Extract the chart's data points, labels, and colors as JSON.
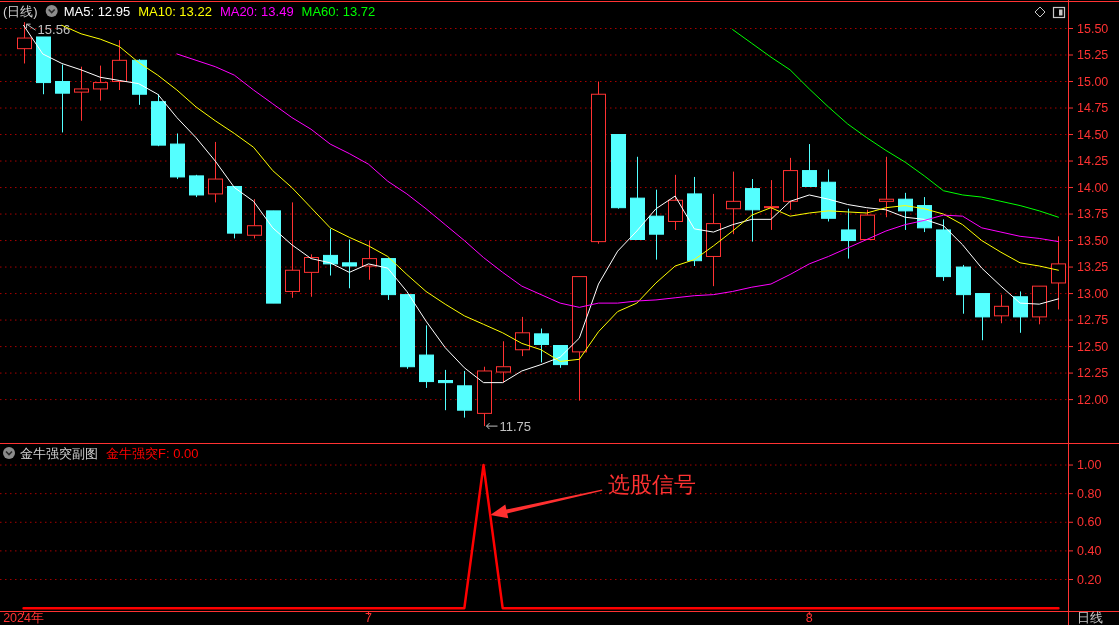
{
  "chart_data": [
    {
      "type": "candlestick",
      "title": "(日线)",
      "categories": [
        null,
        null,
        null,
        null,
        null,
        null,
        null,
        null,
        null,
        null,
        null,
        null,
        null,
        null,
        null,
        null,
        null,
        null,
        null,
        null,
        null,
        null,
        null,
        null,
        null,
        null,
        null,
        null,
        null,
        null,
        null,
        null,
        null,
        null,
        null,
        null,
        null,
        null,
        null,
        null,
        null,
        null,
        null,
        null,
        null,
        null,
        null,
        null,
        null,
        null,
        null,
        null,
        null,
        null,
        null
      ],
      "ohlc": [
        [
          15.31,
          15.56,
          15.17,
          15.41
        ],
        [
          15.42,
          15.42,
          14.88,
          14.99
        ],
        [
          15.0,
          15.16,
          14.52,
          14.89
        ],
        [
          14.9,
          15.14,
          14.63,
          14.93
        ],
        [
          14.93,
          15.15,
          14.82,
          14.99
        ],
        [
          15.0,
          15.39,
          14.92,
          15.2
        ],
        [
          15.2,
          15.21,
          14.78,
          14.88
        ],
        [
          14.81,
          14.88,
          14.39,
          14.4
        ],
        [
          14.41,
          14.51,
          14.08,
          14.1
        ],
        [
          14.11,
          14.12,
          13.91,
          13.93
        ],
        [
          13.94,
          14.43,
          13.86,
          14.08
        ],
        [
          14.01,
          14.01,
          13.52,
          13.57
        ],
        [
          13.55,
          13.89,
          13.52,
          13.64
        ],
        [
          13.78,
          13.78,
          12.91,
          12.91
        ],
        [
          13.02,
          13.86,
          12.96,
          13.22
        ],
        [
          13.2,
          13.37,
          12.97,
          13.34
        ],
        [
          13.36,
          13.61,
          13.17,
          13.28
        ],
        [
          13.29,
          13.51,
          13.05,
          13.26
        ],
        [
          13.26,
          13.5,
          13.13,
          13.33
        ],
        [
          13.33,
          13.33,
          12.94,
          12.99
        ],
        [
          12.99,
          12.99,
          12.29,
          12.31
        ],
        [
          12.42,
          12.7,
          12.11,
          12.17
        ],
        [
          12.18,
          12.28,
          11.9,
          12.16
        ],
        [
          12.13,
          12.27,
          11.83,
          11.9
        ],
        [
          11.87,
          12.31,
          11.75,
          12.27
        ],
        [
          12.26,
          12.55,
          12.16,
          12.31
        ],
        [
          12.47,
          12.78,
          12.41,
          12.63
        ],
        [
          12.62,
          12.67,
          12.35,
          12.52
        ],
        [
          12.51,
          12.51,
          12.3,
          12.33
        ],
        [
          12.45,
          13.16,
          11.99,
          13.16
        ],
        [
          13.49,
          15.0,
          13.47,
          14.88
        ],
        [
          14.5,
          14.5,
          13.8,
          13.81
        ],
        [
          13.9,
          14.29,
          13.51,
          13.51
        ],
        [
          13.73,
          13.98,
          13.32,
          13.56
        ],
        [
          13.68,
          14.12,
          13.6,
          13.88
        ],
        [
          13.94,
          14.1,
          13.26,
          13.31
        ],
        [
          13.35,
          13.94,
          13.07,
          13.66
        ],
        [
          13.8,
          14.15,
          13.56,
          13.87
        ],
        [
          13.99,
          14.08,
          13.49,
          13.79
        ],
        [
          13.81,
          14.07,
          13.6,
          13.82
        ],
        [
          13.87,
          14.28,
          13.79,
          14.16
        ],
        [
          14.16,
          14.41,
          14.01,
          14.01
        ],
        [
          14.05,
          14.17,
          13.68,
          13.71
        ],
        [
          13.6,
          13.8,
          13.33,
          13.5
        ],
        [
          13.51,
          13.79,
          13.51,
          13.74
        ],
        [
          13.87,
          14.29,
          13.72,
          13.89
        ],
        [
          13.89,
          13.95,
          13.6,
          13.78
        ],
        [
          13.83,
          13.91,
          13.58,
          13.62
        ],
        [
          13.6,
          13.7,
          13.12,
          13.16
        ],
        [
          13.25,
          13.27,
          12.81,
          12.99
        ],
        [
          13.0,
          13.0,
          12.56,
          12.78
        ],
        [
          12.79,
          12.99,
          12.72,
          12.88
        ],
        [
          12.97,
          13.02,
          12.63,
          12.78
        ],
        [
          12.78,
          13.07,
          12.71,
          13.07
        ],
        [
          13.1,
          13.54,
          12.85,
          13.28
        ]
      ],
      "colors": [
        "#ff3232",
        "#54ffff",
        "#54ffff",
        "#ff3232",
        "#ff3232",
        "#ff3232",
        "#54ffff",
        "#54ffff",
        "#54ffff",
        "#54ffff",
        "#ff3232",
        "#54ffff",
        "#ff3232",
        "#54ffff",
        "#ff3232",
        "#ff3232",
        "#54ffff",
        "#54ffff",
        "#ff3232",
        "#54ffff",
        "#54ffff",
        "#54ffff",
        "#54ffff",
        "#54ffff",
        "#ff3232",
        "#ff3232",
        "#ff3232",
        "#54ffff",
        "#54ffff",
        "#ff3232",
        "#ff3232",
        "#54ffff",
        "#54ffff",
        "#54ffff",
        "#ff3232",
        "#54ffff",
        "#ff3232",
        "#ff3232",
        "#54ffff",
        "#ff3232",
        "#ff3232",
        "#54ffff",
        "#54ffff",
        "#54ffff",
        "#ff3232",
        "#ff3232",
        "#54ffff",
        "#54ffff",
        "#54ffff",
        "#54ffff",
        "#54ffff",
        "#ff3232",
        "#54ffff",
        "#ff3232",
        "#ff3232"
      ],
      "series": [
        {
          "name": "MA5: 12.95",
          "type": "line",
          "color": "#ffffff",
          "values": [
            15.53,
            15.26,
            15.17,
            15.11,
            15.04,
            15.01,
            14.98,
            14.88,
            14.66,
            14.47,
            14.25,
            14.0,
            13.87,
            13.62,
            13.46,
            13.33,
            13.29,
            13.2,
            13.28,
            13.24,
            13.02,
            12.74,
            12.49,
            12.3,
            12.16,
            12.16,
            12.27,
            12.33,
            12.4,
            12.58,
            13.09,
            13.4,
            13.59,
            13.8,
            13.92,
            13.61,
            13.58,
            13.65,
            13.7,
            13.7,
            13.87,
            13.93,
            13.89,
            13.84,
            13.81,
            13.79,
            13.72,
            13.7,
            13.64,
            13.46,
            13.24,
            13.07,
            12.91,
            12.9,
            12.95
          ]
        },
        {
          "name": "MA10: 13.22",
          "type": "line",
          "color": "#ffff00",
          "values": [
            null,
            null,
            15.53,
            15.45,
            15.4,
            15.33,
            15.18,
            15.06,
            14.92,
            14.76,
            14.63,
            14.51,
            14.38,
            14.16,
            14.0,
            13.81,
            13.62,
            13.53,
            13.45,
            13.35,
            13.18,
            13.02,
            12.9,
            12.79,
            12.71,
            12.63,
            12.53,
            12.47,
            12.36,
            12.38,
            12.64,
            12.83,
            12.91,
            13.1,
            13.26,
            13.32,
            13.45,
            13.59,
            13.74,
            13.81,
            13.73,
            13.76,
            13.78,
            13.77,
            13.76,
            13.81,
            13.83,
            13.8,
            13.75,
            13.65,
            13.5,
            13.39,
            13.29,
            13.26,
            13.22
          ]
        },
        {
          "name": "MA20: 13.49",
          "type": "line",
          "color": "#ff00ff",
          "values": [
            null,
            null,
            null,
            null,
            null,
            null,
            null,
            null,
            15.26,
            15.2,
            15.14,
            15.06,
            14.92,
            14.79,
            14.66,
            14.55,
            14.41,
            14.32,
            14.22,
            14.06,
            13.94,
            13.8,
            13.65,
            13.5,
            13.34,
            13.2,
            13.07,
            12.99,
            12.91,
            12.87,
            12.91,
            12.91,
            12.93,
            12.94,
            12.96,
            12.98,
            12.99,
            13.02,
            13.06,
            13.09,
            13.18,
            13.28,
            13.35,
            13.43,
            13.51,
            13.59,
            13.65,
            13.69,
            13.74,
            13.73,
            13.62,
            13.58,
            13.54,
            13.52,
            13.49
          ]
        },
        {
          "name": "MA60: 13.72",
          "type": "line",
          "color": "#00ff00",
          "values": [
            null,
            null,
            null,
            null,
            null,
            null,
            null,
            null,
            null,
            null,
            null,
            null,
            null,
            null,
            null,
            null,
            null,
            null,
            null,
            null,
            null,
            null,
            null,
            null,
            null,
            null,
            null,
            null,
            null,
            null,
            null,
            null,
            null,
            null,
            null,
            null,
            null,
            15.49,
            15.36,
            15.23,
            15.11,
            14.93,
            14.76,
            14.6,
            14.47,
            14.35,
            14.24,
            14.11,
            13.97,
            13.93,
            13.91,
            13.87,
            13.83,
            13.78,
            13.72
          ]
        }
      ],
      "ylim": [
        11.6,
        15.75
      ],
      "yticks": [
        {
          "value": 12,
          "label": "12.00"
        },
        {
          "value": 12.25,
          "label": "12.25"
        },
        {
          "value": 12.5,
          "label": "12.50"
        },
        {
          "value": 12.75,
          "label": "12.75"
        },
        {
          "value": 13,
          "label": "13.00"
        },
        {
          "value": 13.25,
          "label": "13.25"
        },
        {
          "value": 13.5,
          "label": "13.50"
        },
        {
          "value": 13.75,
          "label": "13.75"
        },
        {
          "value": 14,
          "label": "14.00"
        },
        {
          "value": 14.25,
          "label": "14.25"
        },
        {
          "value": 14.5,
          "label": "14.50"
        },
        {
          "value": 14.75,
          "label": "14.75"
        },
        {
          "value": 15,
          "label": "15.00"
        },
        {
          "value": 15.25,
          "label": "15.25"
        },
        {
          "value": 15.5,
          "label": "15.50"
        }
      ],
      "grid": "y",
      "annotations": [
        "15.56",
        "11.75"
      ]
    },
    {
      "type": "line",
      "title": "金牛强突副图",
      "categories": [
        "2024年",
        null,
        null,
        null,
        null,
        null,
        null,
        null,
        null,
        null,
        null,
        null,
        null,
        null,
        null,
        null,
        null,
        null,
        "7",
        null,
        null,
        null,
        null,
        null,
        null,
        null,
        null,
        null,
        null,
        null,
        null,
        null,
        null,
        null,
        null,
        null,
        null,
        null,
        null,
        null,
        null,
        "8",
        null,
        null,
        null,
        null,
        null,
        null,
        null,
        null,
        null,
        null,
        null,
        null,
        null
      ],
      "series": [
        {
          "name": "金牛强突F: 0.00",
          "color": "#ff0000",
          "values": [
            0,
            0,
            0,
            0,
            0,
            0,
            0,
            0,
            0,
            0,
            0,
            0,
            0,
            0,
            0,
            0,
            0,
            0,
            0,
            0,
            0,
            0,
            0,
            0,
            1,
            0,
            0,
            0,
            0,
            0,
            0,
            0,
            0,
            0,
            0,
            0,
            0,
            0,
            0,
            0,
            0,
            0,
            0,
            0,
            0,
            0,
            0,
            0,
            0,
            0,
            0,
            0,
            0,
            0,
            0
          ]
        }
      ],
      "ylim": [
        -0.02,
        1.14
      ],
      "yticks": [
        {
          "value": 0.2,
          "label": "0.20"
        },
        {
          "value": 0.4,
          "label": "0.40"
        },
        {
          "value": 0.6,
          "label": "0.60"
        },
        {
          "value": 0.8,
          "label": "0.80"
        },
        {
          "value": 1,
          "label": "1.00"
        }
      ],
      "grid": "y",
      "annotations": [
        "选股信号",
        "日线"
      ]
    }
  ]
}
